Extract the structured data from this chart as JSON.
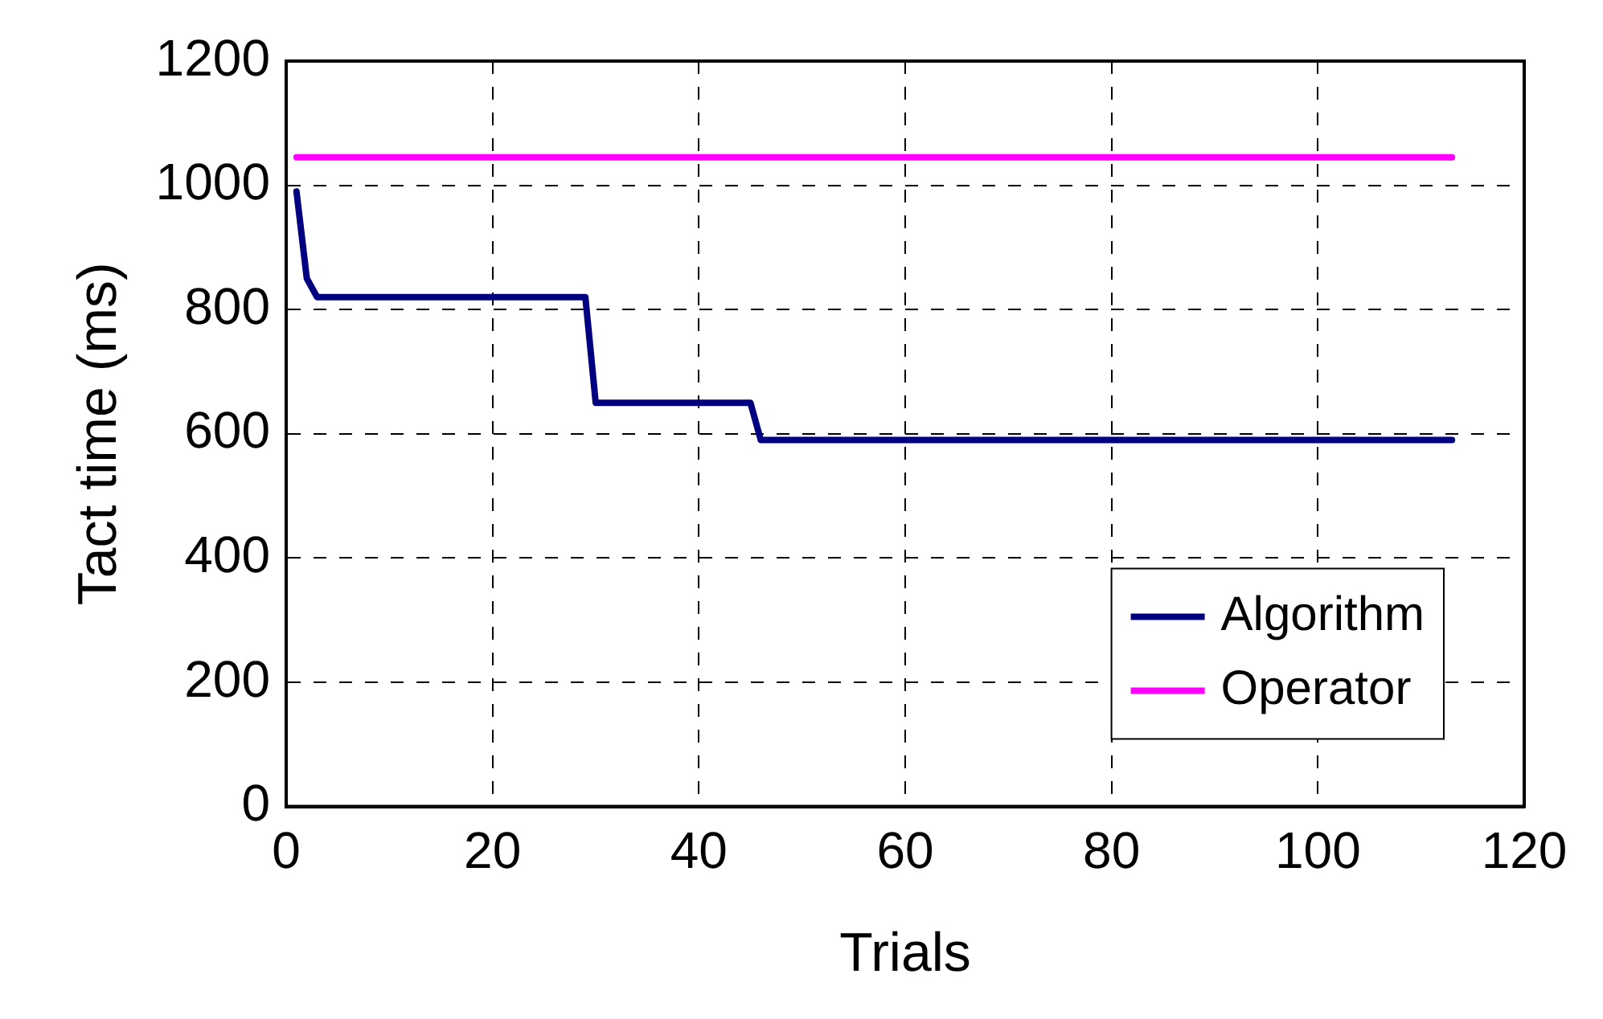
{
  "chart_data": {
    "type": "line",
    "xlabel": "Trials",
    "ylabel": "Tact time (ms)",
    "series": [
      {
        "name": "Algorithm",
        "color": "#000080",
        "x": [
          1,
          2,
          3,
          29,
          30,
          45,
          46,
          113
        ],
        "values": [
          990,
          850,
          820,
          820,
          650,
          650,
          590,
          590
        ]
      },
      {
        "name": "Operator",
        "color": "#ff00ff",
        "x": [
          1,
          113
        ],
        "values": [
          1045,
          1045
        ]
      }
    ],
    "xlim": [
      0,
      120
    ],
    "xticks": [
      0,
      20,
      40,
      60,
      80,
      100,
      120
    ],
    "ylim": [
      0,
      1200
    ],
    "yticks": [
      0,
      200,
      400,
      600,
      800,
      1000,
      1200
    ],
    "grid": true,
    "legend": "bottom right",
    "marker": "none",
    "line_style": "solid"
  }
}
